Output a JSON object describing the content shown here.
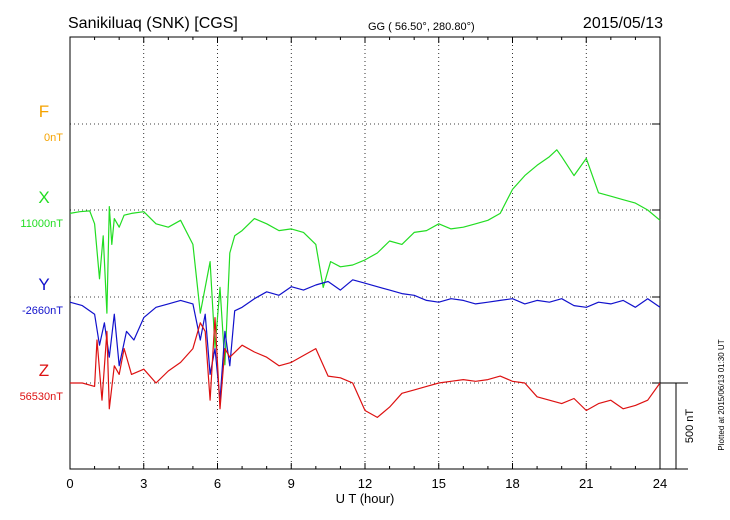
{
  "header": {
    "station": "Sanikiluaq (SNK)  [CGS]",
    "coords": "GG ( 56.50°, 280.80°)",
    "date": "2015/05/13"
  },
  "plotted_note": "Plotted at 2015/06/13 01:30 UT",
  "chart_data": {
    "type": "line",
    "xlabel": "U T (hour)",
    "xlim": [
      0,
      24
    ],
    "x_ticks": [
      "0",
      "3",
      "6",
      "9",
      "12",
      "15",
      "18",
      "21",
      "24"
    ],
    "scale_bar_label": "500 nT",
    "colors": {
      "F": "#f5a300",
      "X": "#22dd22",
      "Y": "#1111cc",
      "Z": "#dd1111"
    },
    "channels": [
      {
        "name": "F",
        "baseline_label": "0nT"
      },
      {
        "name": "X",
        "baseline_label": "11000nT"
      },
      {
        "name": "Y",
        "baseline_label": "-2660nT"
      },
      {
        "name": "Z",
        "baseline_label": "56530nT"
      }
    ],
    "series": [
      {
        "name": "X",
        "x": [
          0,
          0.4,
          0.8,
          1.0,
          1.2,
          1.35,
          1.5,
          1.6,
          1.7,
          1.8,
          2.0,
          2.2,
          2.5,
          3.0,
          3.5,
          4.0,
          4.5,
          5.0,
          5.3,
          5.5,
          5.7,
          5.9,
          6.1,
          6.3,
          6.5,
          6.7,
          7.0,
          7.5,
          8.0,
          8.5,
          9.0,
          9.5,
          10.0,
          10.3,
          10.6,
          11.0,
          11.5,
          12.0,
          12.5,
          13.0,
          13.5,
          14.0,
          14.5,
          15.0,
          15.5,
          16.0,
          16.5,
          17.0,
          17.5,
          18.0,
          18.5,
          19.0,
          19.5,
          19.8,
          20.0,
          20.5,
          21.0,
          21.5,
          22.0,
          22.5,
          23.0,
          23.5,
          24.0
        ],
        "values": [
          -20,
          -10,
          -5,
          -80,
          -400,
          -150,
          -600,
          20,
          -200,
          -50,
          -100,
          -30,
          -20,
          -10,
          -80,
          -100,
          -60,
          -200,
          -600,
          -450,
          -300,
          -800,
          -450,
          -900,
          -250,
          -150,
          -120,
          -50,
          -80,
          -120,
          -110,
          -130,
          -200,
          -450,
          -300,
          -330,
          -320,
          -290,
          -250,
          -180,
          -200,
          -130,
          -120,
          -80,
          -110,
          -100,
          -80,
          -60,
          -20,
          120,
          200,
          260,
          310,
          350,
          310,
          200,
          300,
          100,
          80,
          60,
          40,
          0,
          -60
        ]
      },
      {
        "name": "Y",
        "x": [
          0,
          0.5,
          1.0,
          1.2,
          1.4,
          1.6,
          1.8,
          2.0,
          2.3,
          2.6,
          3.0,
          3.5,
          4.0,
          4.5,
          5.0,
          5.3,
          5.5,
          5.7,
          5.9,
          6.1,
          6.3,
          6.5,
          6.7,
          7.0,
          7.5,
          8.0,
          8.5,
          9.0,
          9.5,
          10.0,
          10.5,
          11.0,
          11.5,
          12.0,
          12.5,
          13.0,
          13.5,
          14.0,
          14.5,
          15.0,
          15.5,
          16.0,
          16.5,
          17.0,
          17.5,
          18.0,
          18.5,
          19.0,
          19.5,
          20.0,
          20.5,
          21.0,
          21.5,
          22.0,
          22.5,
          23.0,
          23.5,
          24.0
        ],
        "values": [
          -30,
          -50,
          -100,
          -280,
          -150,
          -350,
          -100,
          -400,
          -200,
          -250,
          -120,
          -60,
          -40,
          -20,
          -40,
          -250,
          -100,
          -450,
          -300,
          -600,
          -200,
          -400,
          -80,
          -60,
          -10,
          30,
          10,
          60,
          40,
          70,
          90,
          40,
          100,
          80,
          60,
          40,
          20,
          10,
          -20,
          -30,
          -10,
          -20,
          -40,
          -30,
          -20,
          -10,
          -40,
          -20,
          -30,
          -10,
          -50,
          -60,
          -30,
          -40,
          -20,
          -60,
          -10,
          -60
        ]
      },
      {
        "name": "Z",
        "x": [
          0,
          0.5,
          1.0,
          1.1,
          1.3,
          1.5,
          1.6,
          1.8,
          2.0,
          2.2,
          2.5,
          3.0,
          3.5,
          4.0,
          4.5,
          5.0,
          5.3,
          5.5,
          5.7,
          5.9,
          6.1,
          6.3,
          6.5,
          7.0,
          7.5,
          8.0,
          8.5,
          9.0,
          9.5,
          10.0,
          10.5,
          11.0,
          11.5,
          12.0,
          12.5,
          13.0,
          13.5,
          14.0,
          14.5,
          15.0,
          15.5,
          16.0,
          16.5,
          17.0,
          17.5,
          18.0,
          18.5,
          19.0,
          19.5,
          20.0,
          20.5,
          21.0,
          21.5,
          22.0,
          22.5,
          23.0,
          23.5,
          24.0
        ],
        "values": [
          0,
          0,
          -20,
          250,
          -100,
          300,
          -150,
          100,
          50,
          200,
          50,
          80,
          0,
          70,
          120,
          200,
          350,
          300,
          -100,
          380,
          -150,
          200,
          150,
          220,
          180,
          150,
          100,
          120,
          160,
          200,
          40,
          30,
          0,
          -160,
          -200,
          -140,
          -60,
          -40,
          -20,
          0,
          10,
          20,
          10,
          20,
          40,
          10,
          0,
          -80,
          -100,
          -120,
          -90,
          -160,
          -120,
          -100,
          -150,
          -130,
          -100,
          0
        ]
      }
    ]
  }
}
